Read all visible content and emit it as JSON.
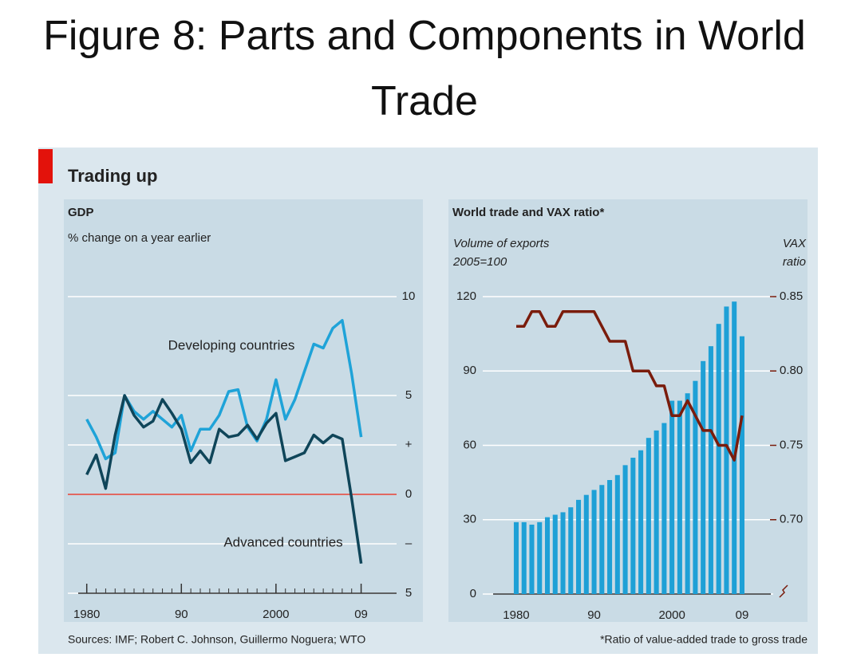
{
  "title": "Figure 8: Parts and Components in World Trade",
  "panel_title": "Trading up",
  "source": "Sources: IMF; Robert C. Johnson, Guillermo Noguera; WTO",
  "footnote": "*Ratio of value-added trade to gross trade",
  "chart_data": [
    {
      "type": "line",
      "title": "GDP",
      "subtitle": "% change on a year earlier",
      "x": [
        1980,
        1981,
        1982,
        1983,
        1984,
        1985,
        1986,
        1987,
        1988,
        1989,
        1990,
        1991,
        1992,
        1993,
        1994,
        1995,
        1996,
        1997,
        1998,
        1999,
        2000,
        2001,
        2002,
        2003,
        2004,
        2005,
        2006,
        2007,
        2008,
        2009
      ],
      "series": [
        {
          "name": "Developing countries",
          "color": "#1fa3d8",
          "values": [
            3.8,
            2.9,
            1.8,
            2.1,
            5.0,
            4.2,
            3.8,
            4.2,
            3.8,
            3.4,
            4.0,
            2.2,
            3.3,
            3.3,
            4.0,
            5.2,
            5.3,
            3.4,
            2.7,
            3.8,
            5.8,
            3.8,
            4.8,
            6.2,
            7.6,
            7.4,
            8.4,
            8.8,
            6.1,
            2.9
          ]
        },
        {
          "name": "Advanced countries",
          "color": "#0f4559",
          "values": [
            1.0,
            2.0,
            0.3,
            3.0,
            5.0,
            4.0,
            3.4,
            3.7,
            4.8,
            4.1,
            3.3,
            1.6,
            2.2,
            1.6,
            3.3,
            2.9,
            3.0,
            3.5,
            2.8,
            3.6,
            4.1,
            1.7,
            1.9,
            2.1,
            3.0,
            2.6,
            3.0,
            2.8,
            -0.2,
            -3.5
          ]
        }
      ],
      "xlim": [
        1978,
        2013
      ],
      "xticks": [
        1980,
        {
          "value": 1990,
          "label": "90"
        },
        2000,
        {
          "value": 2009,
          "label": "09"
        }
      ],
      "ylim": [
        -5,
        10
      ],
      "yticks": [
        10,
        5,
        {
          "value": 2.5,
          "label": "+"
        },
        0,
        {
          "value": -2.5,
          "label": "–"
        },
        {
          "value": -5,
          "label": "5"
        }
      ],
      "zero_line_color": "#e03c31",
      "grid": true
    },
    {
      "type": "bar",
      "title": "World trade and VAX ratio*",
      "ylabel": [
        "Volume of exports",
        "2005=100"
      ],
      "y2label": [
        "VAX",
        "ratio"
      ],
      "x": [
        1980,
        1981,
        1982,
        1983,
        1984,
        1985,
        1986,
        1987,
        1988,
        1989,
        1990,
        1991,
        1992,
        1993,
        1994,
        1995,
        1996,
        1997,
        1998,
        1999,
        2000,
        2001,
        2002,
        2003,
        2004,
        2005,
        2006,
        2007,
        2008,
        2009
      ],
      "series": [
        {
          "type": "bar",
          "color": "#1ea0d6",
          "values": [
            29,
            29,
            28,
            29,
            31,
            32,
            33,
            35,
            38,
            40,
            42,
            44,
            46,
            48,
            52,
            55,
            58,
            63,
            66,
            69,
            78,
            78,
            81,
            86,
            94,
            100,
            109,
            116,
            118,
            104
          ]
        },
        {
          "type": "line",
          "axis": "y2",
          "color": "#7a1c0c",
          "values": [
            0.83,
            0.83,
            0.84,
            0.84,
            0.83,
            0.83,
            0.84,
            0.84,
            0.84,
            0.84,
            0.84,
            0.83,
            0.82,
            0.82,
            0.82,
            0.8,
            0.8,
            0.8,
            0.79,
            0.79,
            0.77,
            0.77,
            0.78,
            0.77,
            0.76,
            0.76,
            0.75,
            0.75,
            0.74,
            0.77
          ]
        }
      ],
      "xlim": [
        1975.7,
        2013
      ],
      "xticks": [
        1980,
        {
          "value": 1990,
          "label": "90"
        },
        2000,
        {
          "value": 2009,
          "label": "09"
        }
      ],
      "ylim": [
        0,
        120
      ],
      "yticks": [
        0,
        30,
        60,
        90,
        120
      ],
      "y2lim": [
        0.65,
        0.85
      ],
      "y2ticks": [
        {
          "value": 0.7,
          "label": "0.70"
        },
        0.75,
        {
          "value": 0.8,
          "label": "0.80"
        },
        0.85
      ],
      "grid": true
    }
  ]
}
